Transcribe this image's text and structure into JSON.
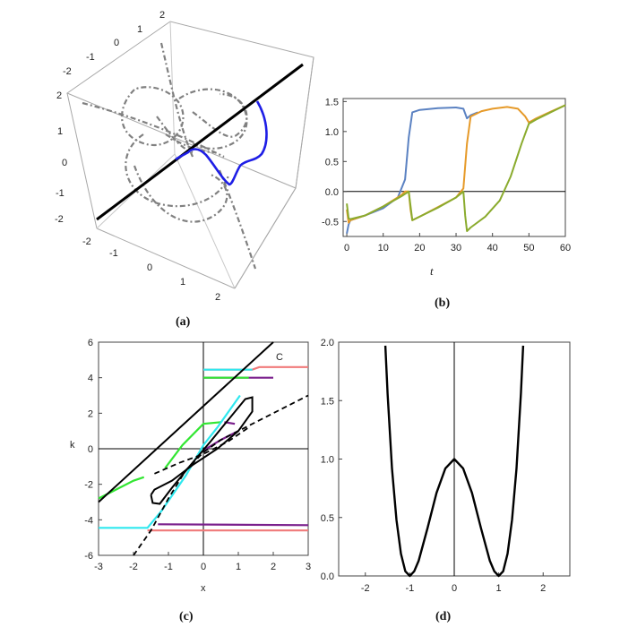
{
  "chart_data": [
    {
      "panel": "a",
      "type": "line",
      "label": "(a)",
      "axes": {
        "ticks_top": [
          "-2",
          "-1",
          "0",
          "1",
          "2"
        ],
        "ticks_left": [
          "-2",
          "-1",
          "0",
          "1",
          "2"
        ],
        "ticks_bottom": [
          "-2",
          "-1",
          "0",
          "1",
          "2"
        ]
      },
      "series": [
        {
          "role": "black diagonal line",
          "color": "#000000",
          "values": [
            [
              -2,
              -2,
              -2
            ],
            [
              2,
              2,
              2
            ]
          ]
        },
        {
          "role": "blue curve",
          "color": "#1e1ee6"
        },
        {
          "role": "gray dash-dot curves",
          "color": "#808080"
        }
      ]
    },
    {
      "panel": "b",
      "type": "line",
      "label": "(b)",
      "xlabel": "t",
      "xlim": [
        -1,
        60
      ],
      "ylim": [
        -0.75,
        1.55
      ],
      "xticks": [
        0,
        10,
        20,
        30,
        40,
        50,
        60
      ],
      "yticks": [
        -0.5,
        0.0,
        0.5,
        1.0,
        1.5
      ],
      "ytick_labels": [
        "-0.5",
        "0.0",
        "0.5",
        "1.0",
        "1.5"
      ],
      "series": [
        {
          "color": "#5b82c2",
          "x": [
            0,
            0.5,
            1,
            5,
            10,
            14,
            16,
            17,
            18,
            20,
            25,
            30,
            32,
            33,
            34,
            36
          ],
          "y": [
            -0.7,
            -0.55,
            -0.48,
            -0.4,
            -0.28,
            -0.1,
            0.2,
            0.9,
            1.32,
            1.36,
            1.39,
            1.4,
            1.38,
            1.22,
            1.27,
            1.32
          ]
        },
        {
          "color": "#e69a29",
          "x": [
            0,
            0.5,
            1,
            5,
            10,
            15,
            16,
            17,
            17.5,
            18,
            20,
            25,
            30,
            32,
            33,
            34,
            37,
            40,
            44,
            47,
            49,
            50,
            52,
            56,
            60
          ],
          "y": [
            -0.3,
            -0.52,
            -0.48,
            -0.4,
            -0.25,
            -0.06,
            0.0,
            0.0,
            -0.3,
            -0.48,
            -0.42,
            -0.26,
            -0.1,
            0.05,
            0.8,
            1.25,
            1.34,
            1.38,
            1.41,
            1.38,
            1.25,
            1.15,
            1.22,
            1.33,
            1.44
          ]
        },
        {
          "color": "#8aab2e",
          "x": [
            0,
            0.5,
            1,
            5,
            10,
            15,
            17,
            18,
            20,
            25,
            30,
            32,
            32.5,
            33,
            34,
            38,
            42,
            45,
            48,
            50,
            52,
            56,
            60
          ],
          "y": [
            -0.2,
            -0.45,
            -0.46,
            -0.4,
            -0.25,
            -0.08,
            0.0,
            -0.48,
            -0.42,
            -0.27,
            -0.1,
            0.0,
            -0.4,
            -0.66,
            -0.6,
            -0.42,
            -0.15,
            0.25,
            0.8,
            1.13,
            1.2,
            1.32,
            1.44
          ]
        }
      ]
    },
    {
      "panel": "c",
      "type": "line",
      "label": "(c)",
      "xlabel": "x",
      "ylabel": "k",
      "xlim": [
        -3,
        3
      ],
      "ylim": [
        -6,
        6
      ],
      "xticks": [
        -3,
        -2,
        -1,
        0,
        1,
        2,
        3
      ],
      "yticks": [
        -6,
        -4,
        -2,
        0,
        2,
        4,
        6
      ],
      "annotation": "C",
      "series": [
        {
          "role": "line C",
          "color": "#000000",
          "style": "solid",
          "x": [
            -3,
            2
          ],
          "y": [
            -3,
            6
          ]
        },
        {
          "role": "dashed curve",
          "color": "#000000",
          "style": "dashed"
        },
        {
          "role": "closed orbit",
          "color": "#000000",
          "style": "solid"
        },
        {
          "color": "#32e632",
          "role": "green curves"
        },
        {
          "color": "#7a1f8c",
          "role": "purple curves"
        },
        {
          "color": "#2fe8ef",
          "role": "cyan curves"
        },
        {
          "color": "#f07a7a",
          "role": "pink curves"
        }
      ]
    },
    {
      "panel": "d",
      "type": "line",
      "label": "(d)",
      "xlim": [
        -2.6,
        2.6
      ],
      "ylim": [
        0,
        2
      ],
      "xticks": [
        -2,
        -1,
        0,
        1,
        2
      ],
      "yticks": [
        0.0,
        0.5,
        1.0,
        1.5,
        2.0
      ],
      "ytick_labels": [
        "0.0",
        "0.5",
        "1.0",
        "1.5",
        "2.0"
      ],
      "series": [
        {
          "color": "#000000",
          "x": [
            -1.55,
            -1.5,
            -1.4,
            -1.3,
            -1.2,
            -1.1,
            -1.0,
            -0.9,
            -0.8,
            -0.6,
            -0.4,
            -0.2,
            0,
            0.2,
            0.4,
            0.6,
            0.8,
            0.9,
            1.0,
            1.1,
            1.2,
            1.3,
            1.4,
            1.5,
            1.55
          ],
          "y": [
            1.97,
            1.56,
            0.92,
            0.48,
            0.19,
            0.04,
            0.0,
            0.04,
            0.13,
            0.41,
            0.71,
            0.92,
            1.0,
            0.92,
            0.71,
            0.41,
            0.13,
            0.04,
            0.0,
            0.04,
            0.19,
            0.48,
            0.92,
            1.56,
            1.97
          ]
        }
      ]
    }
  ]
}
